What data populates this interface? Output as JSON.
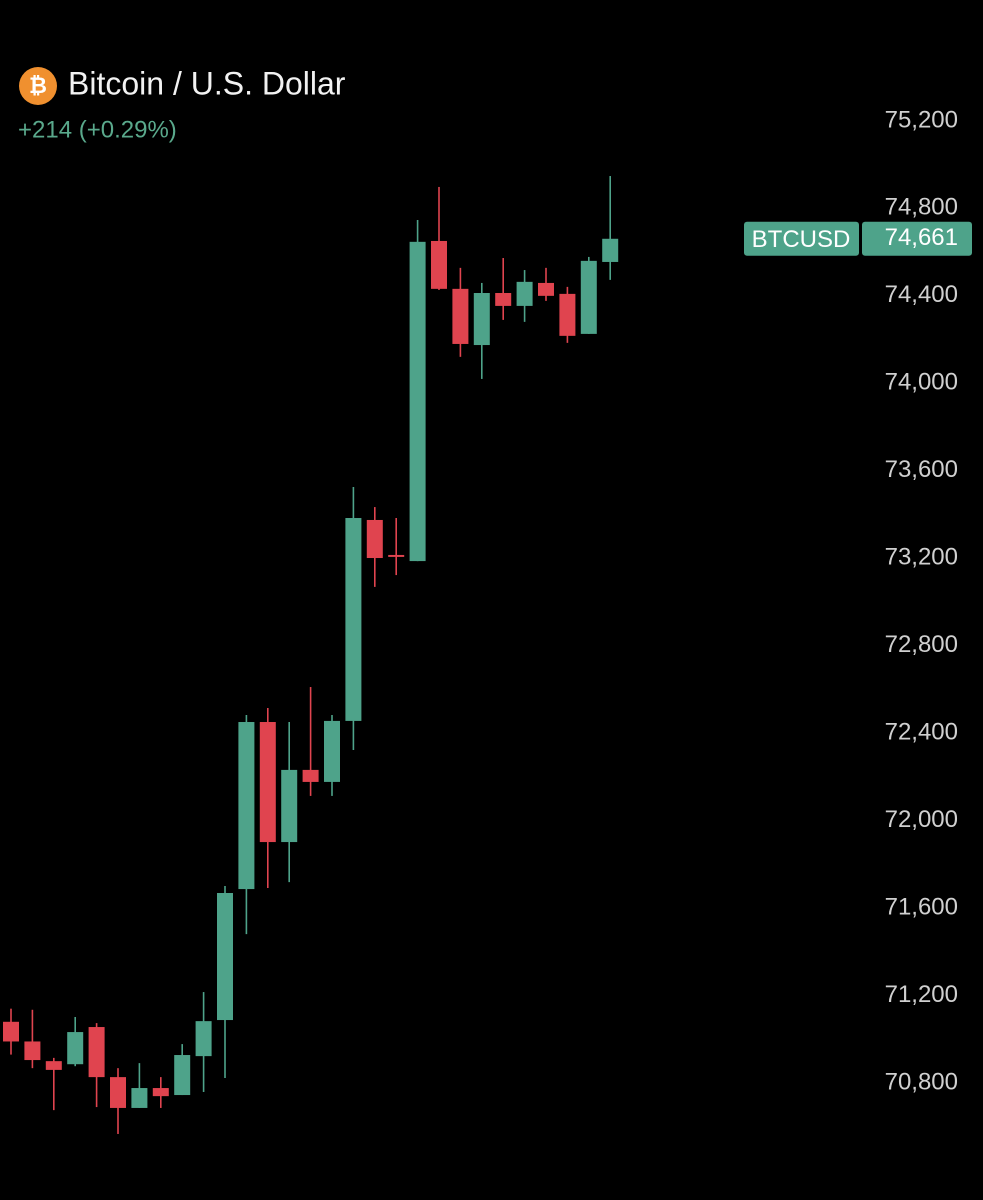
{
  "chart_data": {
    "type": "candlestick",
    "title": "Bitcoin / U.S. Dollar",
    "symbol_icon": "₿",
    "change_label": "+214 (+0.29%)",
    "ticker": "BTCUSD",
    "last_price": {
      "value": 74661,
      "label": "74,661"
    },
    "up_color": "#4ea38a",
    "down_color": "#e0444f",
    "ylim": [
      70265,
      75753
    ],
    "yticks": [
      {
        "value": 70800,
        "label": "70,800"
      },
      {
        "value": 71200,
        "label": "71,200"
      },
      {
        "value": 71600,
        "label": "71,600"
      },
      {
        "value": 72000,
        "label": "72,000"
      },
      {
        "value": 72400,
        "label": "72,400"
      },
      {
        "value": 72800,
        "label": "72,800"
      },
      {
        "value": 73200,
        "label": "73,200"
      },
      {
        "value": 73600,
        "label": "73,600"
      },
      {
        "value": 74000,
        "label": "74,000"
      },
      {
        "value": 74400,
        "label": "74,400"
      },
      {
        "value": 74800,
        "label": "74,800"
      },
      {
        "value": 75200,
        "label": "75,200"
      }
    ],
    "open": [
      71080,
      70990,
      70900,
      70886,
      71056,
      70827,
      70686,
      70777,
      70745,
      70923,
      71088,
      71687,
      72451,
      71902,
      72232,
      72177,
      72456,
      73375,
      73215,
      73187,
      74651,
      74432,
      74175,
      74413,
      74354,
      74459,
      74409,
      74226,
      74555
    ],
    "high": [
      71140,
      71135,
      70915,
      71102,
      71074,
      70868,
      70891,
      70827,
      70978,
      71216,
      71701,
      72483,
      72515,
      72451,
      72611,
      72483,
      73526,
      73434,
      73384,
      74747,
      74898,
      74528,
      74459,
      74573,
      74518,
      74528,
      74441,
      74578,
      74948
    ],
    "low": [
      70930,
      70868,
      70676,
      70877,
      70690,
      70567,
      70686,
      70686,
      70745,
      70759,
      70823,
      71481,
      71692,
      71719,
      72113,
      72113,
      72323,
      73069,
      73123,
      73187,
      74427,
      74121,
      74020,
      74290,
      74281,
      74377,
      74185,
      74226,
      74473
    ],
    "close": [
      70990,
      70905,
      70860,
      71033,
      70827,
      70686,
      70777,
      70740,
      70928,
      71083,
      71669,
      72451,
      71902,
      72232,
      72177,
      72456,
      73384,
      73201,
      73206,
      74647,
      74432,
      74180,
      74413,
      74354,
      74464,
      74400,
      74217,
      74560,
      74661
    ]
  }
}
